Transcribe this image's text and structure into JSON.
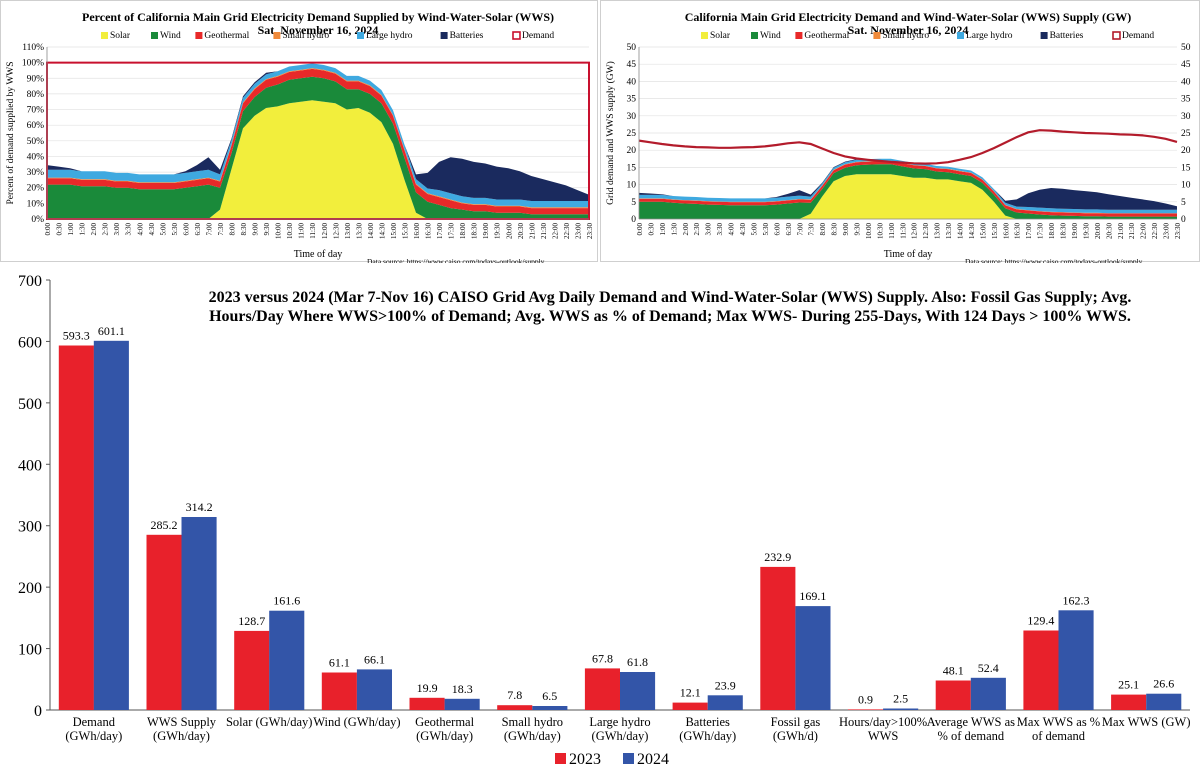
{
  "chart_data": [
    {
      "type": "area",
      "title": "Percent of California Main Grid Electricity Demand Supplied by Wind-Water-Solar (WWS)",
      "subtitle": "Sat. November 16, 2024",
      "xlabel": "Time of day",
      "ylabel": "Percent of demand supplied by WWS",
      "source": "Data source: https://www.caiso.com/todays-outlook/supply",
      "ylim": [
        0,
        110
      ],
      "yticks": [
        "0%",
        "10%",
        "20%",
        "30%",
        "40%",
        "50%",
        "60%",
        "70%",
        "80%",
        "90%",
        "100%",
        "110%"
      ],
      "xticks": [
        "0:00",
        "0:30",
        "1:00",
        "1:30",
        "2:00",
        "2:30",
        "3:00",
        "3:30",
        "4:00",
        "4:30",
        "5:00",
        "5:30",
        "6:00",
        "6:30",
        "7:00",
        "7:30",
        "8:00",
        "8:30",
        "9:00",
        "9:30",
        "10:00",
        "10:30",
        "11:00",
        "11:30",
        "12:00",
        "12:30",
        "13:00",
        "13:30",
        "14:00",
        "14:30",
        "15:00",
        "15:30",
        "16:00",
        "16:30",
        "17:00",
        "17:30",
        "18:00",
        "18:30",
        "19:00",
        "19:30",
        "20:00",
        "20:30",
        "21:00",
        "21:30",
        "22:00",
        "22:30",
        "23:00",
        "23:30"
      ],
      "legend": [
        "Solar",
        "Wind",
        "Geothermal",
        "Small hydro",
        "Large hydro",
        "Batteries",
        "Demand"
      ],
      "legend_position": "top",
      "series": [
        {
          "name": "Solar",
          "color": "#f2ee3c",
          "values": [
            0,
            0,
            0,
            0,
            0,
            0,
            0,
            0,
            0,
            0,
            0,
            0,
            0,
            0,
            0,
            6,
            32,
            58,
            66,
            71,
            72,
            74,
            75,
            76,
            75,
            74,
            70,
            71,
            68,
            62,
            48,
            25,
            4,
            0,
            0,
            0,
            0,
            0,
            0,
            0,
            0,
            0,
            0,
            0,
            0,
            0,
            0,
            0
          ]
        },
        {
          "name": "Wind",
          "color": "#1a8a3a",
          "values": [
            22,
            22,
            22,
            21,
            21,
            21,
            20,
            20,
            19,
            19,
            19,
            19,
            20,
            21,
            22,
            14,
            10,
            11,
            12,
            13,
            14,
            15,
            15,
            15,
            15,
            14,
            13,
            12,
            12,
            12,
            13,
            14,
            13,
            11,
            9,
            7,
            6,
            5,
            5,
            4,
            4,
            4,
            3,
            3,
            3,
            3,
            3,
            3
          ]
        },
        {
          "name": "Geothermal",
          "color": "#e82929",
          "values": [
            4,
            4,
            4,
            4,
            4,
            4,
            4,
            4,
            4,
            4,
            4,
            4,
            4,
            4,
            4,
            4,
            5,
            5,
            5,
            5,
            5,
            5,
            5,
            5,
            5,
            5,
            5,
            5,
            5,
            5,
            5,
            5,
            5,
            5,
            5,
            5,
            4,
            4,
            4,
            4,
            4,
            4,
            4,
            4,
            4,
            4,
            4,
            4
          ]
        },
        {
          "name": "Small hydro",
          "color": "#f08a3a",
          "values": [
            0.5,
            0.5,
            0.5,
            0.5,
            0.5,
            0.5,
            0.5,
            0.5,
            0.5,
            0.5,
            0.5,
            0.5,
            0.5,
            0.5,
            0.5,
            0.5,
            0.5,
            0.5,
            0.5,
            0.5,
            0.5,
            0.5,
            0.5,
            0.5,
            0.5,
            0.5,
            0.5,
            0.5,
            0.5,
            0.5,
            0.5,
            0.5,
            0.5,
            0.5,
            0.5,
            0.5,
            0.5,
            0.5,
            0.5,
            0.5,
            0.5,
            0.5,
            0.5,
            0.5,
            0.5,
            0.5,
            0.5,
            0.5
          ]
        },
        {
          "name": "Large hydro",
          "color": "#3fa9e0",
          "values": [
            5,
            5,
            5,
            5,
            5,
            5,
            5,
            5,
            5,
            5,
            5,
            5,
            5,
            5,
            5,
            4,
            3,
            3,
            3,
            3,
            3,
            3,
            3,
            3,
            3,
            3,
            3,
            3,
            3,
            3,
            3,
            3,
            3,
            3,
            4,
            4,
            4,
            4,
            4,
            4,
            4,
            4,
            4,
            4,
            4,
            4,
            4,
            4
          ]
        },
        {
          "name": "Batteries",
          "color": "#1a2a5e",
          "values": [
            3,
            2,
            1,
            0,
            0,
            0,
            0,
            0,
            0,
            0,
            0,
            0,
            1,
            4,
            8,
            3,
            1,
            1,
            1,
            1,
            0,
            0,
            0,
            0,
            0,
            0,
            0,
            0,
            0,
            0,
            0,
            0,
            3,
            10,
            18,
            23,
            24,
            23,
            22,
            21,
            20,
            18,
            16,
            14,
            12,
            10,
            7,
            4
          ]
        },
        {
          "name": "Demand",
          "color": "#c8102e",
          "values": [
            100,
            100,
            100,
            100,
            100,
            100,
            100,
            100,
            100,
            100,
            100,
            100,
            100,
            100,
            100,
            100,
            100,
            100,
            100,
            100,
            100,
            100,
            100,
            100,
            100,
            100,
            100,
            100,
            100,
            100,
            100,
            100,
            100,
            100,
            100,
            100,
            100,
            100,
            100,
            100,
            100,
            100,
            100,
            100,
            100,
            100,
            100,
            100
          ]
        }
      ]
    },
    {
      "type": "area",
      "title": "California Main Grid Electricity Demand and Wind-Water-Solar (WWS) Supply (GW)",
      "subtitle": "Sat. November 16, 2024",
      "xlabel": "Time of day",
      "ylabel": "Grid demand and WWS supply (GW)",
      "source": "Data source: https://www.caiso.com/todays-outlook/supply",
      "ylim": [
        0,
        50
      ],
      "yticks": [
        "0",
        "5",
        "10",
        "15",
        "20",
        "25",
        "30",
        "35",
        "40",
        "45",
        "50"
      ],
      "xticks": [
        "0:00",
        "0:30",
        "1:00",
        "1:30",
        "2:00",
        "2:30",
        "3:00",
        "3:30",
        "4:00",
        "4:30",
        "5:00",
        "5:30",
        "6:00",
        "6:30",
        "7:00",
        "7:30",
        "8:00",
        "8:30",
        "9:00",
        "9:30",
        "10:00",
        "10:30",
        "11:00",
        "11:30",
        "12:00",
        "12:30",
        "13:00",
        "13:30",
        "14:00",
        "14:30",
        "15:00",
        "15:30",
        "16:00",
        "16:30",
        "17:00",
        "17:30",
        "18:00",
        "18:30",
        "19:00",
        "19:30",
        "20:00",
        "20:30",
        "21:00",
        "21:30",
        "22:00",
        "22:30",
        "23:00",
        "23:30"
      ],
      "legend": [
        "Solar",
        "Wind",
        "Geothermal",
        "Small hydro",
        "Large hydro",
        "Batteries",
        "Demand"
      ],
      "legend_position": "top",
      "series": [
        {
          "name": "Solar",
          "color": "#f2ee3c",
          "values": [
            0,
            0,
            0,
            0,
            0,
            0,
            0,
            0,
            0,
            0,
            0,
            0,
            0,
            0,
            0,
            1.5,
            6.5,
            11,
            12.5,
            13,
            13,
            13,
            13,
            12.5,
            12,
            12,
            11.5,
            11.5,
            11,
            10.5,
            8.5,
            5,
            1,
            0,
            0,
            0,
            0,
            0,
            0,
            0,
            0,
            0,
            0,
            0,
            0,
            0,
            0,
            0
          ]
        },
        {
          "name": "Wind",
          "color": "#1a8a3a",
          "values": [
            5,
            5,
            5,
            4.7,
            4.5,
            4.4,
            4.2,
            4.1,
            4,
            4,
            4,
            4,
            4.2,
            4.5,
            4.8,
            3.2,
            2.2,
            2.3,
            2.4,
            2.6,
            2.8,
            2.9,
            2.9,
            2.8,
            2.7,
            2.5,
            2.3,
            2.1,
            2,
            2,
            2,
            2.1,
            2.1,
            1.9,
            1.6,
            1.3,
            1.1,
            1,
            0.9,
            0.8,
            0.8,
            0.7,
            0.7,
            0.7,
            0.7,
            0.7,
            0.7,
            0.7
          ]
        },
        {
          "name": "Geothermal",
          "color": "#e82929",
          "values": [
            0.9,
            0.9,
            0.9,
            0.9,
            0.9,
            0.9,
            0.9,
            0.9,
            0.9,
            0.9,
            0.9,
            0.9,
            0.9,
            0.9,
            0.9,
            0.9,
            0.9,
            0.9,
            0.9,
            0.9,
            0.9,
            0.9,
            0.9,
            0.9,
            0.9,
            0.9,
            0.9,
            0.9,
            0.9,
            0.9,
            0.9,
            0.9,
            0.9,
            0.9,
            0.9,
            0.9,
            0.9,
            0.9,
            0.9,
            0.9,
            0.9,
            0.9,
            0.9,
            0.9,
            0.9,
            0.9,
            0.9,
            0.9
          ]
        },
        {
          "name": "Small hydro",
          "color": "#f08a3a",
          "values": [
            0.1,
            0.1,
            0.1,
            0.1,
            0.1,
            0.1,
            0.1,
            0.1,
            0.1,
            0.1,
            0.1,
            0.1,
            0.1,
            0.1,
            0.1,
            0.1,
            0.1,
            0.1,
            0.1,
            0.1,
            0.1,
            0.1,
            0.1,
            0.1,
            0.1,
            0.1,
            0.1,
            0.1,
            0.1,
            0.1,
            0.1,
            0.1,
            0.1,
            0.1,
            0.1,
            0.1,
            0.1,
            0.1,
            0.1,
            0.1,
            0.1,
            0.1,
            0.1,
            0.1,
            0.1,
            0.1,
            0.1,
            0.1
          ]
        },
        {
          "name": "Large hydro",
          "color": "#3fa9e0",
          "values": [
            1,
            1,
            1,
            1,
            1,
            1,
            1,
            1,
            1,
            1,
            1,
            1,
            1,
            1,
            1,
            0.8,
            0.6,
            0.6,
            0.6,
            0.6,
            0.6,
            0.6,
            0.6,
            0.6,
            0.6,
            0.6,
            0.6,
            0.6,
            0.6,
            0.6,
            0.6,
            0.6,
            0.6,
            0.7,
            0.9,
            1,
            1,
            1,
            1,
            1,
            1,
            1,
            1,
            1,
            1,
            1,
            1,
            1
          ]
        },
        {
          "name": "Batteries",
          "color": "#1a2a5e",
          "values": [
            0.6,
            0.4,
            0.2,
            0,
            0,
            0,
            0,
            0,
            0,
            0,
            0,
            0,
            0.2,
            0.8,
            1.6,
            0.6,
            0.2,
            0.2,
            0.2,
            0.2,
            0,
            0,
            0,
            0,
            0,
            0,
            0,
            0,
            0,
            0,
            0,
            0,
            0.6,
            2.1,
            4,
            5.2,
            5.9,
            5.8,
            5.5,
            5.3,
            5,
            4.5,
            4,
            3.5,
            3,
            2.5,
            1.8,
            1
          ]
        }
      ],
      "demand": {
        "name": "Demand",
        "color": "#b31b2b",
        "values": [
          22.8,
          22.3,
          21.8,
          21.4,
          21.1,
          20.9,
          20.8,
          20.7,
          20.7,
          20.8,
          20.9,
          21.1,
          21.5,
          22,
          22.3,
          21.8,
          20.5,
          19.2,
          18.2,
          17.6,
          17.2,
          16.9,
          16.6,
          16.4,
          16.2,
          16.1,
          16.2,
          16.5,
          17.2,
          18,
          19.2,
          20.6,
          22.2,
          23.8,
          25.2,
          25.8,
          25.7,
          25.4,
          25.2,
          25,
          24.9,
          24.8,
          24.6,
          24.5,
          24.3,
          23.9,
          23.3,
          22.4
        ]
      }
    },
    {
      "type": "bar",
      "title": "2023 versus 2024 (Mar 7-Nov 16) CAISO Grid Avg Daily Demand and Wind-Water-Solar (WWS) Supply. Also: Fossil Gas Supply; Avg. Hours/Day Where WWS>100% of Demand; Avg. WWS as % of Demand; Max WWS- During 255-Days, With 124 Days > 100% WWS.",
      "title_lines": [
        "2023 versus 2024 (Mar 7-Nov 16) CAISO Grid Avg Daily Demand and Wind-Water-Solar (WWS) Supply. Also: Fossil Gas Supply; Avg.",
        "Hours/Day Where WWS>100% of Demand; Avg. WWS as % of Demand; Max WWS- During 255-Days, With 124 Days > 100% WWS."
      ],
      "ylim": [
        0,
        700
      ],
      "yticks": [
        "0",
        "100",
        "200",
        "300",
        "400",
        "500",
        "600",
        "700"
      ],
      "categories": [
        [
          "Demand",
          "(GWh/day)"
        ],
        [
          "WWS Supply",
          "(GWh/day)"
        ],
        [
          "Solar (GWh/day)"
        ],
        [
          "Wind (GWh/day)"
        ],
        [
          "Geothermal",
          "(GWh/day)"
        ],
        [
          "Small hydro",
          "(GWh/day)"
        ],
        [
          "Large hydro",
          "(GWh/day)"
        ],
        [
          "Batteries",
          "(GWh/day)"
        ],
        [
          "Fossil gas",
          "(GWh/d)"
        ],
        [
          "Hours/day>100%",
          "WWS"
        ],
        [
          "Average WWS as",
          "% of demand"
        ],
        [
          "Max WWS as %",
          "of demand"
        ],
        [
          "Max WWS (GW)"
        ]
      ],
      "series": [
        {
          "name": "2023",
          "color": "#e8212b",
          "values": [
            593.3,
            285.2,
            128.7,
            61.1,
            19.9,
            7.8,
            67.8,
            12.1,
            232.9,
            0.9,
            48.1,
            129.4,
            25.1
          ],
          "labels": [
            "593.3",
            "285.2",
            "128.7",
            "61.1",
            "19.9",
            "7.8",
            "67.8",
            "12.1",
            "232.9",
            "0.9",
            "48.1",
            "129.4",
            "25.1"
          ]
        },
        {
          "name": "2024",
          "color": "#3355a8",
          "values": [
            601.1,
            314.2,
            161.6,
            66.1,
            18.3,
            6.5,
            61.8,
            23.9,
            169.1,
            2.5,
            52.4,
            162.3,
            26.6
          ],
          "labels": [
            "601.1",
            "314.2",
            "161.6",
            "66.1",
            "18.3",
            "6.5",
            "61.8",
            "23.9",
            "169.1",
            "2.5",
            "52.4",
            "162.3",
            "26.6"
          ]
        }
      ],
      "legend_position": "bottom-center"
    }
  ]
}
